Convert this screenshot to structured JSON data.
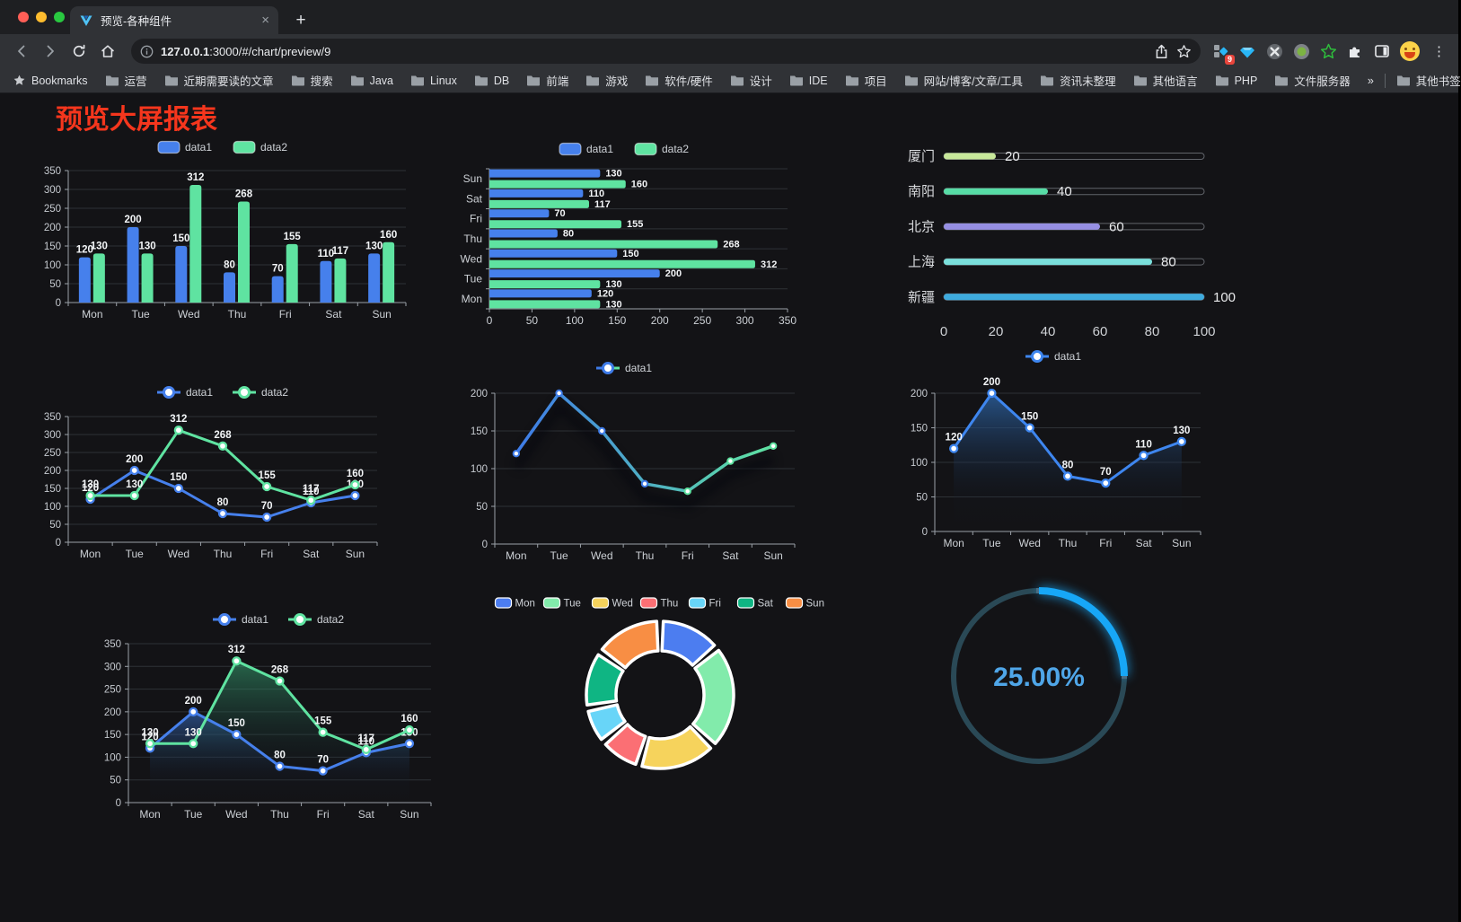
{
  "browser": {
    "tab_title": "预览-各种组件",
    "new_tab_label": "+",
    "close_tab_label": "×",
    "url_host": "127.0.0.1",
    "url_rest": ":3000/#/chart/preview/9",
    "extension_badge": "9",
    "menu_glyph": "⋮",
    "bookmarks_bar": {
      "star_item_label": "Bookmarks",
      "folders": [
        "运营",
        "近期需要读的文章",
        "搜索",
        "Java",
        "Linux",
        "DB",
        "前端",
        "游戏",
        "软件/硬件",
        "设计",
        "IDE",
        "项目",
        "网站/博客/文章/工具",
        "资讯未整理",
        "其他语言",
        "PHP",
        "文件服务器"
      ],
      "overflow_chevron": "»",
      "other_bookmarks_label": "其他书签"
    },
    "icons": [
      "back-icon",
      "forward-icon",
      "reload-icon",
      "home-icon",
      "info-icon",
      "share-icon",
      "star-icon",
      "blocks-extension-icon",
      "gem-extension-icon",
      "pinwheel-extension-icon",
      "dot-extension-icon",
      "green-star-extension-icon",
      "puzzle-extension-icon",
      "side-panel-icon",
      "avatar-emoji",
      "kebab-menu-icon"
    ]
  },
  "page": {
    "title": "预览大屏报表",
    "title_color": "#F5361D",
    "background": "#131316"
  },
  "chart_data": [
    {
      "id": "c1",
      "type": "bar",
      "title": "",
      "categories": [
        "Mon",
        "Tue",
        "Wed",
        "Thu",
        "Fri",
        "Sat",
        "Sun"
      ],
      "series": [
        {
          "name": "data1",
          "color": "#4680EC",
          "values": [
            120,
            200,
            150,
            80,
            70,
            110,
            130
          ]
        },
        {
          "name": "data2",
          "color": "#5FE3A1",
          "values": [
            130,
            130,
            312,
            268,
            155,
            117,
            160
          ]
        }
      ],
      "ylim": [
        0,
        350
      ],
      "ytick_step": 50,
      "legend_position": "top",
      "grid": true,
      "value_labels": true
    },
    {
      "id": "c2",
      "type": "bar",
      "orientation": "horizontal",
      "categories_top_to_bottom": [
        "Sun",
        "Sat",
        "Fri",
        "Thu",
        "Wed",
        "Tue",
        "Mon"
      ],
      "series": [
        {
          "name": "data1",
          "color": "#4680EC",
          "values_top_to_bottom": [
            130,
            110,
            70,
            80,
            150,
            200,
            120
          ]
        },
        {
          "name": "data2",
          "color": "#5FE3A1",
          "values_top_to_bottom": [
            160,
            117,
            155,
            268,
            312,
            130,
            130
          ]
        }
      ],
      "xlim": [
        0,
        350
      ],
      "xtick_step": 50,
      "legend_position": "top",
      "value_labels": true
    },
    {
      "id": "c3",
      "type": "bar",
      "subtype": "progress-list",
      "categories": [
        "厦门",
        "南阳",
        "北京",
        "上海",
        "新疆"
      ],
      "values": [
        20,
        40,
        60,
        80,
        100
      ],
      "colors": [
        "#C7E89A",
        "#57DCA6",
        "#968FE3",
        "#7ADFDB",
        "#3EABDE"
      ],
      "xlim": [
        0,
        100
      ],
      "xticks": [
        0,
        20,
        40,
        60,
        80,
        100
      ],
      "value_labels": true
    },
    {
      "id": "c4",
      "type": "line",
      "categories": [
        "Mon",
        "Tue",
        "Wed",
        "Thu",
        "Fri",
        "Sat",
        "Sun"
      ],
      "series": [
        {
          "name": "data1",
          "color": "#4680EC",
          "values": [
            120,
            200,
            150,
            80,
            70,
            110,
            130
          ]
        },
        {
          "name": "data2",
          "color": "#5FE3A1",
          "values": [
            130,
            130,
            312,
            268,
            155,
            117,
            160
          ]
        }
      ],
      "ylim": [
        0,
        350
      ],
      "ytick_step": 50,
      "legend_position": "top",
      "value_labels": true
    },
    {
      "id": "c5",
      "type": "line",
      "subtype": "gradient-stroke",
      "categories": [
        "Mon",
        "Tue",
        "Wed",
        "Thu",
        "Fri",
        "Sat",
        "Sun"
      ],
      "series": [
        {
          "name": "data1",
          "gradient": [
            "#3E7BE8",
            "#5FE3A1"
          ],
          "values": [
            120,
            200,
            150,
            80,
            70,
            110,
            130
          ]
        }
      ],
      "ylim": [
        0,
        200
      ],
      "ytick_step": 50,
      "legend_position": "top",
      "value_labels": false
    },
    {
      "id": "c6",
      "type": "area",
      "categories": [
        "Mon",
        "Tue",
        "Wed",
        "Thu",
        "Fri",
        "Sat",
        "Sun"
      ],
      "series": [
        {
          "name": "data1",
          "color": "#3E86EF",
          "area_top": "rgba(45,100,165,0.80)",
          "values": [
            120,
            200,
            150,
            80,
            70,
            110,
            130
          ]
        }
      ],
      "ylim": [
        0,
        200
      ],
      "ytick_step": 50,
      "legend_position": "top",
      "value_labels": true
    },
    {
      "id": "c7",
      "type": "area",
      "categories": [
        "Mon",
        "Tue",
        "Wed",
        "Thu",
        "Fri",
        "Sat",
        "Sun"
      ],
      "series": [
        {
          "name": "data1",
          "color": "#4680EC",
          "area_top": "rgba(58,118,210,0.55)",
          "values": [
            120,
            200,
            150,
            80,
            70,
            110,
            130
          ]
        },
        {
          "name": "data2",
          "color": "#5FE3A1",
          "area_top": "rgba(56,170,118,0.55)",
          "values": [
            130,
            130,
            312,
            268,
            155,
            117,
            160
          ]
        }
      ],
      "ylim": [
        0,
        350
      ],
      "ytick_step": 50,
      "legend_position": "top",
      "value_labels": true
    },
    {
      "id": "c8",
      "type": "pie",
      "subtype": "donut",
      "labels": [
        "Mon",
        "Tue",
        "Wed",
        "Thu",
        "Fri",
        "Sat",
        "Sun"
      ],
      "values": [
        120,
        200,
        150,
        80,
        70,
        110,
        130
      ],
      "colors": [
        "#4C7DF0",
        "#82EBAB",
        "#F6D35C",
        "#FB6F74",
        "#68D5F8",
        "#0FB583",
        "#F88E44"
      ],
      "start_angle_deg": -90,
      "clockwise": true,
      "border_color": "#FFFFFF",
      "legend_position": "top"
    },
    {
      "id": "c9",
      "type": "gauge",
      "subtype": "ring-progress",
      "value": 25,
      "max": 100,
      "label": "25.00%",
      "arc_color": "#17A7F7",
      "track_color": "#2A4956",
      "text_color": "#4FA6E8"
    }
  ]
}
